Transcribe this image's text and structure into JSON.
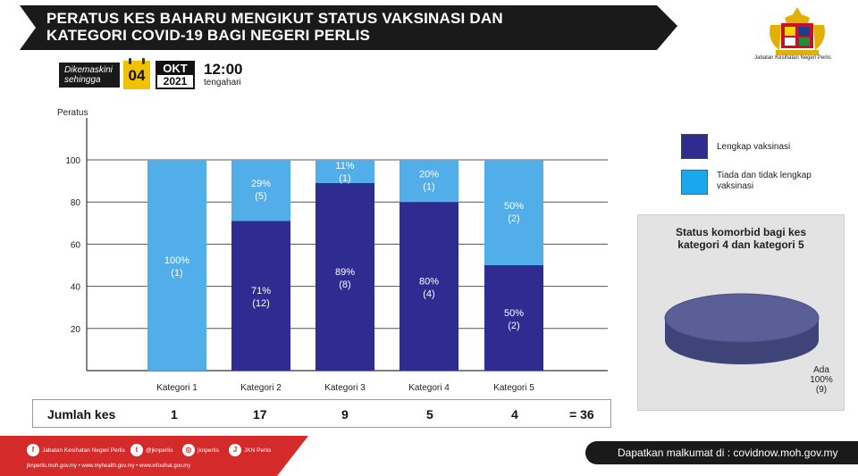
{
  "header": {
    "title_line1": "PERATUS KES BAHARU MENGIKUT STATUS VAKSINASI  DAN",
    "title_line2": "KATEGORI COVID-19 BAGI NEGERI PERLIS",
    "logo_caption": "Jabatan Kesihatan Negeri Perlis"
  },
  "updated": {
    "label_line1": "Dikemaskini",
    "label_line2": "sehingga",
    "day": "04",
    "month": "OKT",
    "year": "2021",
    "time": "12:00",
    "time_period": "tengahari"
  },
  "colors": {
    "lengkap": "#2e2c91",
    "tiada": "#52aee8",
    "banner": "#1a1a1a",
    "red": "#d42a2a",
    "pie": "#5a5f98",
    "pie_side": "#3f4478"
  },
  "chart_data": {
    "type": "bar",
    "stacked": true,
    "ylabel": "Peratus",
    "ylim": [
      0,
      100
    ],
    "yticks": [
      20,
      40,
      60,
      80,
      100
    ],
    "categories": [
      "Kategori 1",
      "Kategori 2",
      "Kategori 3",
      "Kategori 4",
      "Kategori 5"
    ],
    "series": [
      {
        "name": "Lengkap vaksinasi",
        "values": [
          0,
          71,
          89,
          80,
          50
        ],
        "labels": [
          "",
          "71%",
          "89%",
          "80%",
          "50%"
        ],
        "counts": [
          "",
          "(12)",
          "(8)",
          "(4)",
          "(2)"
        ]
      },
      {
        "name": "Tiada dan tidak lengkap vaksinasi",
        "values": [
          100,
          29,
          11,
          20,
          50
        ],
        "labels": [
          "100%",
          "29%",
          "11%",
          "20%",
          "50%"
        ],
        "counts": [
          "(1)",
          "(5)",
          "(1)",
          "(1)",
          "(2)"
        ]
      }
    ],
    "grid": true,
    "legend_position": "right"
  },
  "legend": {
    "lengkap": "Lengkap vaksinasi",
    "tiada_line1": "Tiada dan tidak lengkap",
    "tiada_line2": "vaksinasi"
  },
  "comorbid": {
    "title_line1": "Status komorbid bagi kes",
    "title_line2": "kategori 4 dan kategori 5",
    "pie": {
      "type": "pie",
      "slices": [
        {
          "label": "Ada",
          "percent": "100%",
          "count": "(9)",
          "value": 100
        }
      ]
    }
  },
  "totals": {
    "label": "Jumlah kes",
    "values": [
      "1",
      "17",
      "9",
      "5",
      "4"
    ],
    "sum": "= 36"
  },
  "footer": {
    "facebook": "Jabatan Kesihatan Negeri Perlis",
    "twitter": "@jknperlis",
    "instagram": "jknperlis",
    "app": "JKN Perlis",
    "links": "jknperlis.moh.gov.my  • www.myhealth.gov.my  • www.infosihat.gov.my",
    "info": "Dapatkan malkumat di : covidnow.moh.gov.my"
  }
}
